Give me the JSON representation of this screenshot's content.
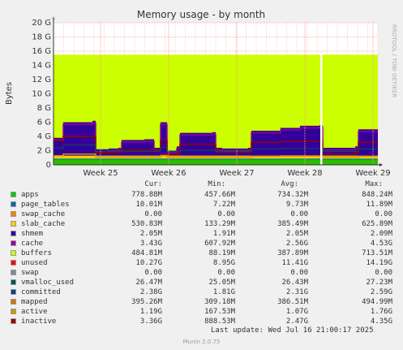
{
  "chart_data": {
    "type": "area",
    "title": "Memory usage - by month",
    "ylabel": "Bytes",
    "watermark": "RRDTOOL / TOBI OETIKER",
    "y_ticks": [
      "0",
      "2 G",
      "4 G",
      "6 G",
      "8 G",
      "10 G",
      "12 G",
      "14 G",
      "16 G",
      "18 G",
      "20 G"
    ],
    "ylim": [
      0,
      20
    ],
    "x_ticks": [
      "Week 25",
      "Week 26",
      "Week 27",
      "Week 28",
      "Week 29"
    ],
    "grid": true,
    "series_colors": {
      "apps": "#00cc00",
      "page_tables": "#0066b3",
      "swap_cache": "#ff8000",
      "slab_cache": "#ffcc00",
      "shmem": "#330099",
      "cache": "#330099",
      "buffers": "#990099",
      "unused": "#ccff00",
      "swap": "#ff0000",
      "vmalloc_used": "#888888",
      "committed": "#005555",
      "mapped": "#cc7700",
      "active": "#cc9900",
      "inactive": "#990000"
    },
    "timeline": {
      "x_start": 0,
      "x_end": 100,
      "gap_at": 82.5,
      "data_start": 0,
      "segments_cache_top": [
        [
          0,
          3.8
        ],
        [
          2,
          3.8
        ],
        [
          3,
          6.0
        ],
        [
          12,
          6.2
        ],
        [
          13,
          2.2
        ],
        [
          17,
          2.3
        ],
        [
          20,
          2.4
        ],
        [
          21,
          3.5
        ],
        [
          28,
          3.6
        ],
        [
          31,
          2.4
        ],
        [
          33,
          6.0
        ],
        [
          35,
          2.0
        ],
        [
          38,
          2.6
        ],
        [
          39,
          4.5
        ],
        [
          49,
          4.6
        ],
        [
          50,
          2.4
        ],
        [
          52,
          2.3
        ],
        [
          60,
          2.4
        ],
        [
          61,
          4.8
        ],
        [
          70,
          5.2
        ],
        [
          76,
          5.5
        ],
        [
          82,
          5.6
        ],
        [
          83,
          2.4
        ],
        [
          93,
          2.6
        ],
        [
          94,
          5.0
        ],
        [
          100,
          5.0
        ]
      ],
      "segments_inactive": [
        [
          0,
          3.4
        ],
        [
          2,
          3.4
        ],
        [
          3,
          4.0
        ],
        [
          12,
          4.0
        ],
        [
          13,
          1.7
        ],
        [
          20,
          1.8
        ],
        [
          21,
          2.1
        ],
        [
          31,
          2.0
        ],
        [
          33,
          3.5
        ],
        [
          35,
          1.4
        ],
        [
          38,
          1.5
        ],
        [
          39,
          2.9
        ],
        [
          49,
          2.9
        ],
        [
          50,
          1.8
        ],
        [
          60,
          1.8
        ],
        [
          61,
          3.2
        ],
        [
          70,
          3.3
        ],
        [
          82,
          3.3
        ],
        [
          83,
          1.5
        ],
        [
          93,
          1.7
        ],
        [
          94,
          3.2
        ],
        [
          100,
          3.2
        ]
      ],
      "unused_top": 15.5
    }
  },
  "legend": {
    "headers": [
      "Cur:",
      "Min:",
      "Avg:",
      "Max:"
    ],
    "rows": [
      {
        "name": "apps",
        "color": "#00cc00",
        "cur": "778.88M",
        "min": "457.66M",
        "avg": "734.32M",
        "max": "848.24M"
      },
      {
        "name": "page_tables",
        "color": "#0066b3",
        "cur": "10.01M",
        "min": "7.22M",
        "avg": "9.73M",
        "max": "11.89M"
      },
      {
        "name": "swap_cache",
        "color": "#ff8000",
        "cur": "0.00",
        "min": "0.00",
        "avg": "0.00",
        "max": "0.00"
      },
      {
        "name": "slab_cache",
        "color": "#ffcc00",
        "cur": "530.83M",
        "min": "133.29M",
        "avg": "385.49M",
        "max": "625.89M"
      },
      {
        "name": "shmem",
        "color": "#330099",
        "cur": "2.05M",
        "min": "1.91M",
        "avg": "2.05M",
        "max": "2.09M"
      },
      {
        "name": "cache",
        "color": "#990099",
        "cur": "3.43G",
        "min": "607.92M",
        "avg": "2.56G",
        "max": "4.53G"
      },
      {
        "name": "buffers",
        "color": "#ccff00",
        "cur": "484.81M",
        "min": "88.19M",
        "avg": "387.89M",
        "max": "713.51M"
      },
      {
        "name": "unused",
        "color": "#ff0000",
        "cur": "10.27G",
        "min": "8.95G",
        "avg": "11.41G",
        "max": "14.19G"
      },
      {
        "name": "swap",
        "color": "#888888",
        "cur": "0.00",
        "min": "0.00",
        "avg": "0.00",
        "max": "0.00"
      },
      {
        "name": "vmalloc_used",
        "color": "#005555",
        "cur": "26.47M",
        "min": "25.05M",
        "avg": "26.43M",
        "max": "27.23M"
      },
      {
        "name": "committed",
        "color": "#004488",
        "cur": "2.38G",
        "min": "1.81G",
        "avg": "2.31G",
        "max": "2.59G"
      },
      {
        "name": "mapped",
        "color": "#cc7700",
        "cur": "395.26M",
        "min": "309.18M",
        "avg": "386.51M",
        "max": "494.99M"
      },
      {
        "name": "active",
        "color": "#cc9900",
        "cur": "1.19G",
        "min": "167.53M",
        "avg": "1.07G",
        "max": "1.76G"
      },
      {
        "name": "inactive",
        "color": "#990000",
        "cur": "3.36G",
        "min": "888.53M",
        "avg": "2.47G",
        "max": "4.35G"
      }
    ]
  },
  "last_update": "Last update: Wed Jul 16 21:00:17 2025",
  "footer": "Munin 2.0.75"
}
